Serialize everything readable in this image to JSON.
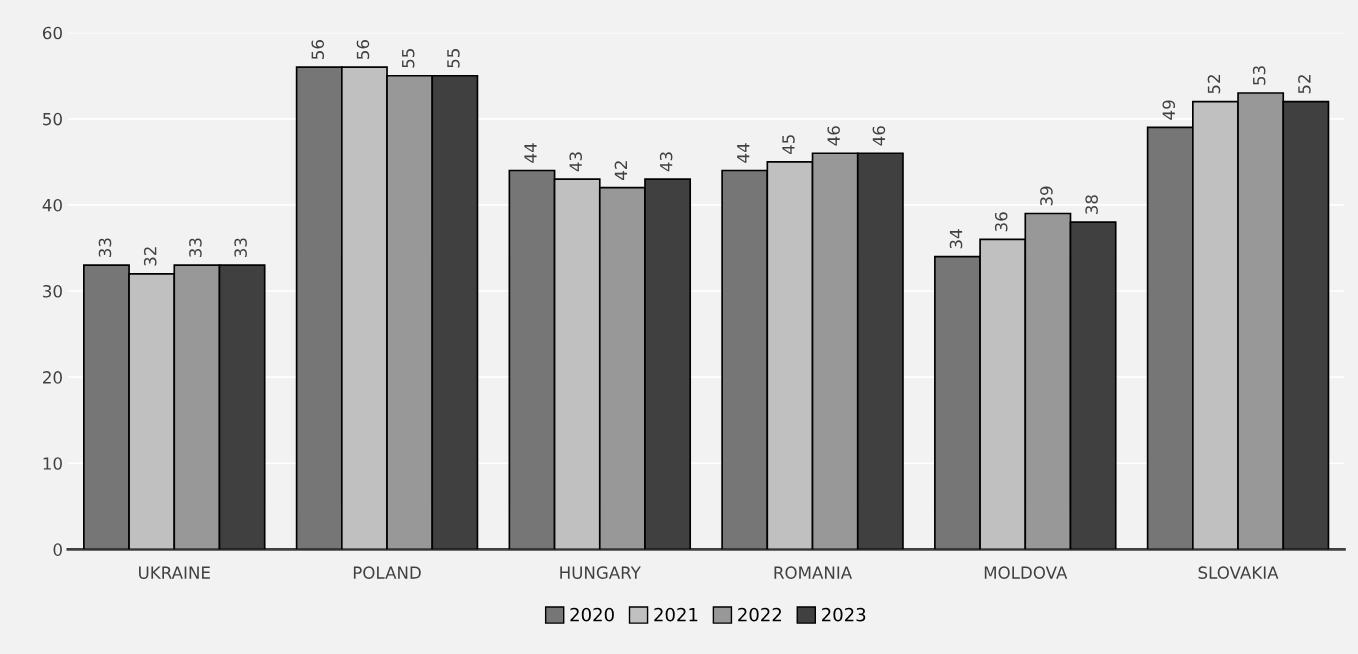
{
  "chart_data": {
    "type": "bar",
    "categories": [
      "UKRAINE",
      "POLAND",
      "HUNGARY",
      "ROMANIA",
      "MOLDOVA",
      "SLOVAKIA"
    ],
    "series": [
      {
        "name": "2020",
        "color": "#767676",
        "values": [
          33,
          56,
          44,
          44,
          34,
          49
        ]
      },
      {
        "name": "2021",
        "color": "#c0c0c0",
        "values": [
          32,
          56,
          43,
          45,
          36,
          52
        ]
      },
      {
        "name": "2022",
        "color": "#989898",
        "values": [
          33,
          55,
          42,
          46,
          39,
          53
        ]
      },
      {
        "name": "2023",
        "color": "#404040",
        "values": [
          33,
          55,
          43,
          46,
          38,
          52
        ]
      }
    ],
    "ylim": [
      0,
      60
    ],
    "yticks": [
      0,
      10,
      20,
      30,
      40,
      50,
      60
    ],
    "grid": "y",
    "legend": "bottom",
    "data_labels": true
  }
}
